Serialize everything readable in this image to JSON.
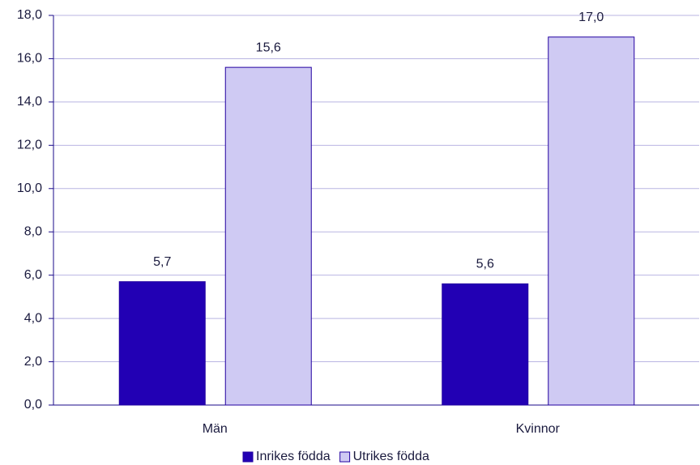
{
  "chart_data": {
    "type": "bar",
    "categories": [
      "Män",
      "Kvinnor"
    ],
    "series": [
      {
        "name": "Inrikes födda",
        "color": "#2200b4",
        "values": [
          5.7,
          5.6
        ],
        "value_labels": [
          "5,7",
          "5,6"
        ]
      },
      {
        "name": "Utrikes födda",
        "color": "#cfcaf3",
        "values": [
          15.6,
          17.0
        ],
        "value_labels": [
          "15,6",
          "17,0"
        ]
      }
    ],
    "ylim": [
      0,
      18
    ],
    "yticks": [
      {
        "value": 0,
        "label": "0,0"
      },
      {
        "value": 2,
        "label": "2,0"
      },
      {
        "value": 4,
        "label": "4,0"
      },
      {
        "value": 6,
        "label": "6,0"
      },
      {
        "value": 8,
        "label": "8,0"
      },
      {
        "value": 10,
        "label": "10,0"
      },
      {
        "value": 12,
        "label": "12,0"
      },
      {
        "value": 14,
        "label": "14,0"
      },
      {
        "value": 16,
        "label": "16,0"
      },
      {
        "value": 18,
        "label": "18,0"
      }
    ],
    "grid": true,
    "legend": "bottom"
  }
}
